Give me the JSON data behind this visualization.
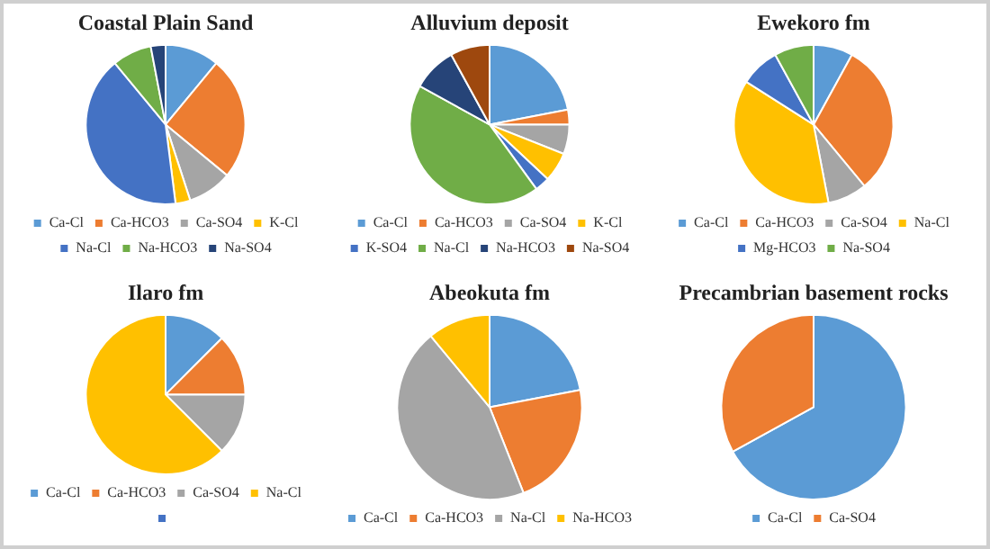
{
  "chart_data": [
    {
      "type": "pie",
      "title": "Coastal Plain Sand",
      "categories": [
        "Ca-Cl",
        "Ca-HCO3",
        "Ca-SO4",
        "K-Cl",
        "Na-Cl",
        "Na-HCO3",
        "Na-SO4"
      ],
      "values": [
        11,
        25,
        9,
        3,
        41,
        8,
        3
      ],
      "colors": [
        "#5b9bd5",
        "#ed7d31",
        "#a5a5a5",
        "#ffc000",
        "#4472c4",
        "#70ad47",
        "#264478"
      ],
      "legend": "bottom"
    },
    {
      "type": "pie",
      "title": "Alluvium deposit",
      "categories": [
        "Ca-Cl",
        "Ca-HCO3",
        "Ca-SO4",
        "K-Cl",
        "K-SO4",
        "Na-Cl",
        "Na-HCO3",
        "Na-SO4"
      ],
      "values": [
        22,
        3,
        6,
        6,
        3,
        43,
        9,
        8
      ],
      "colors": [
        "#5b9bd5",
        "#ed7d31",
        "#a5a5a5",
        "#ffc000",
        "#4472c4",
        "#70ad47",
        "#264478",
        "#9e480e"
      ],
      "legend": "bottom"
    },
    {
      "type": "pie",
      "title": "Ewekoro fm",
      "categories": [
        "Ca-Cl",
        "Ca-HCO3",
        "Ca-SO4",
        "Na-Cl",
        "Mg-HCO3",
        "Na-SO4"
      ],
      "values": [
        8,
        31,
        8,
        37,
        8,
        8
      ],
      "colors": [
        "#5b9bd5",
        "#ed7d31",
        "#a5a5a5",
        "#ffc000",
        "#4472c4",
        "#70ad47"
      ],
      "legend": "bottom"
    },
    {
      "type": "pie",
      "title": "Ilaro fm",
      "categories": [
        "Ca-Cl",
        "Ca-HCO3",
        "Ca-SO4",
        "Na-Cl",
        null
      ],
      "values": [
        12.5,
        12.5,
        12.5,
        62.5,
        0
      ],
      "colors": [
        "#5b9bd5",
        "#ed7d31",
        "#a5a5a5",
        "#ffc000",
        "#4472c4"
      ],
      "legend": "bottom"
    },
    {
      "type": "pie",
      "title": "Abeokuta fm",
      "categories": [
        "Ca-Cl",
        "Ca-HCO3",
        "Na-Cl",
        "Na-HCO3"
      ],
      "values": [
        22,
        22,
        45,
        11
      ],
      "colors": [
        "#5b9bd5",
        "#ed7d31",
        "#a5a5a5",
        "#ffc000"
      ],
      "legend": "bottom"
    },
    {
      "type": "pie",
      "title": "Precambrian basement rocks",
      "categories": [
        "Ca-Cl",
        "Ca-SO4"
      ],
      "values": [
        67,
        33
      ],
      "colors": [
        "#5b9bd5",
        "#ed7d31"
      ],
      "legend": "bottom"
    }
  ]
}
